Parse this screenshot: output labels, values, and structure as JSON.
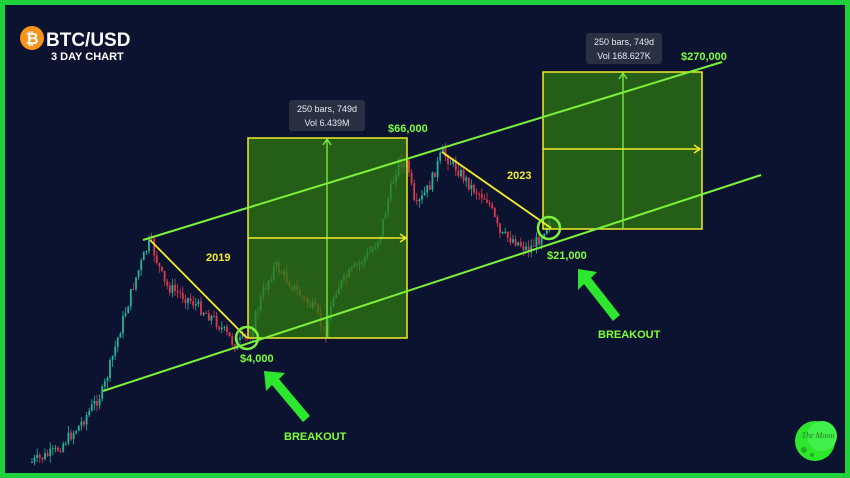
{
  "header": {
    "symbol_glyph": "₿",
    "title": "BTC/USD",
    "subtitle": "3 DAY CHART"
  },
  "colors": {
    "background": "#0b1330",
    "frame": "#1fd13a",
    "channel": "#7cf23a",
    "trend": "#f5ec2a",
    "projection_fill": "#2f7a0f",
    "bull_candle": "#25b39a",
    "bear_candle": "#e0394a",
    "bitcoin": "#f7931a"
  },
  "chart_data": {
    "type": "candlestick",
    "ticker": "BTC/USD",
    "timeframe": "3 DAY",
    "price_levels": [
      {
        "label": "$4,000",
        "value": 4000
      },
      {
        "label": "$66,000",
        "value": 66000
      },
      {
        "label": "$21,000",
        "value": 21000
      },
      {
        "label": "$270,000",
        "value": 270000
      }
    ],
    "cycle_labels": [
      "2019",
      "2023"
    ],
    "annotations": [
      "BREAKOUT",
      "BREAKOUT"
    ],
    "measurements": [
      {
        "bars": "250 bars, 749d",
        "volume": "Vol 6.439M"
      },
      {
        "bars": "250 bars, 749d",
        "volume": "Vol 168.627K"
      }
    ],
    "channel": "ascending parallel channel",
    "logo": "The Moon"
  }
}
